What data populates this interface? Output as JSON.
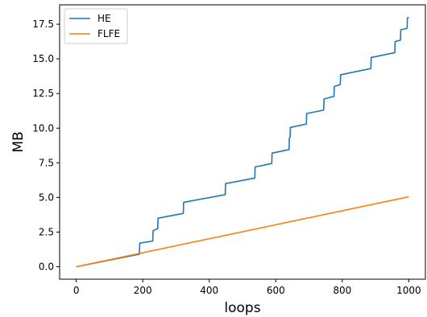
{
  "chart_data": {
    "type": "line",
    "title": "",
    "xlabel": "loops",
    "ylabel": "MB",
    "xlim": [
      -50,
      1050
    ],
    "ylim": [
      -0.9,
      18.9
    ],
    "xticks": [
      0,
      200,
      400,
      600,
      800,
      1000
    ],
    "yticks": [
      0.0,
      2.5,
      5.0,
      7.5,
      10.0,
      12.5,
      15.0,
      17.5
    ],
    "xtick_labels": [
      "0",
      "200",
      "400",
      "600",
      "800",
      "1000"
    ],
    "ytick_labels": [
      "0.0",
      "2.5",
      "5.0",
      "7.5",
      "10.0",
      "12.5",
      "15.0",
      "17.5"
    ],
    "grid": false,
    "legend_position": "top-left",
    "series": [
      {
        "name": "HE",
        "color": "#1f77b4",
        "points": [
          [
            0,
            0.0
          ],
          [
            190,
            0.9
          ],
          [
            191,
            1.7
          ],
          [
            230,
            1.85
          ],
          [
            231,
            2.6
          ],
          [
            245,
            2.75
          ],
          [
            246,
            3.5
          ],
          [
            322,
            3.85
          ],
          [
            323,
            4.65
          ],
          [
            448,
            5.2
          ],
          [
            449,
            6.0
          ],
          [
            537,
            6.4
          ],
          [
            538,
            7.2
          ],
          [
            588,
            7.45
          ],
          [
            589,
            8.2
          ],
          [
            640,
            8.45
          ],
          [
            641,
            9.3
          ],
          [
            643,
            9.35
          ],
          [
            644,
            10.05
          ],
          [
            692,
            10.3
          ],
          [
            693,
            11.05
          ],
          [
            744,
            11.3
          ],
          [
            745,
            12.1
          ],
          [
            775,
            12.3
          ],
          [
            776,
            13.0
          ],
          [
            794,
            13.15
          ],
          [
            795,
            13.85
          ],
          [
            886,
            14.3
          ],
          [
            887,
            15.1
          ],
          [
            958,
            15.45
          ],
          [
            959,
            16.25
          ],
          [
            975,
            16.35
          ],
          [
            976,
            17.1
          ],
          [
            995,
            17.2
          ],
          [
            996,
            17.95
          ],
          [
            1000,
            18.0
          ]
        ]
      },
      {
        "name": "FLFE",
        "color": "#ff7f0e",
        "points": [
          [
            0,
            0.0
          ],
          [
            1000,
            5.05
          ]
        ]
      }
    ]
  }
}
